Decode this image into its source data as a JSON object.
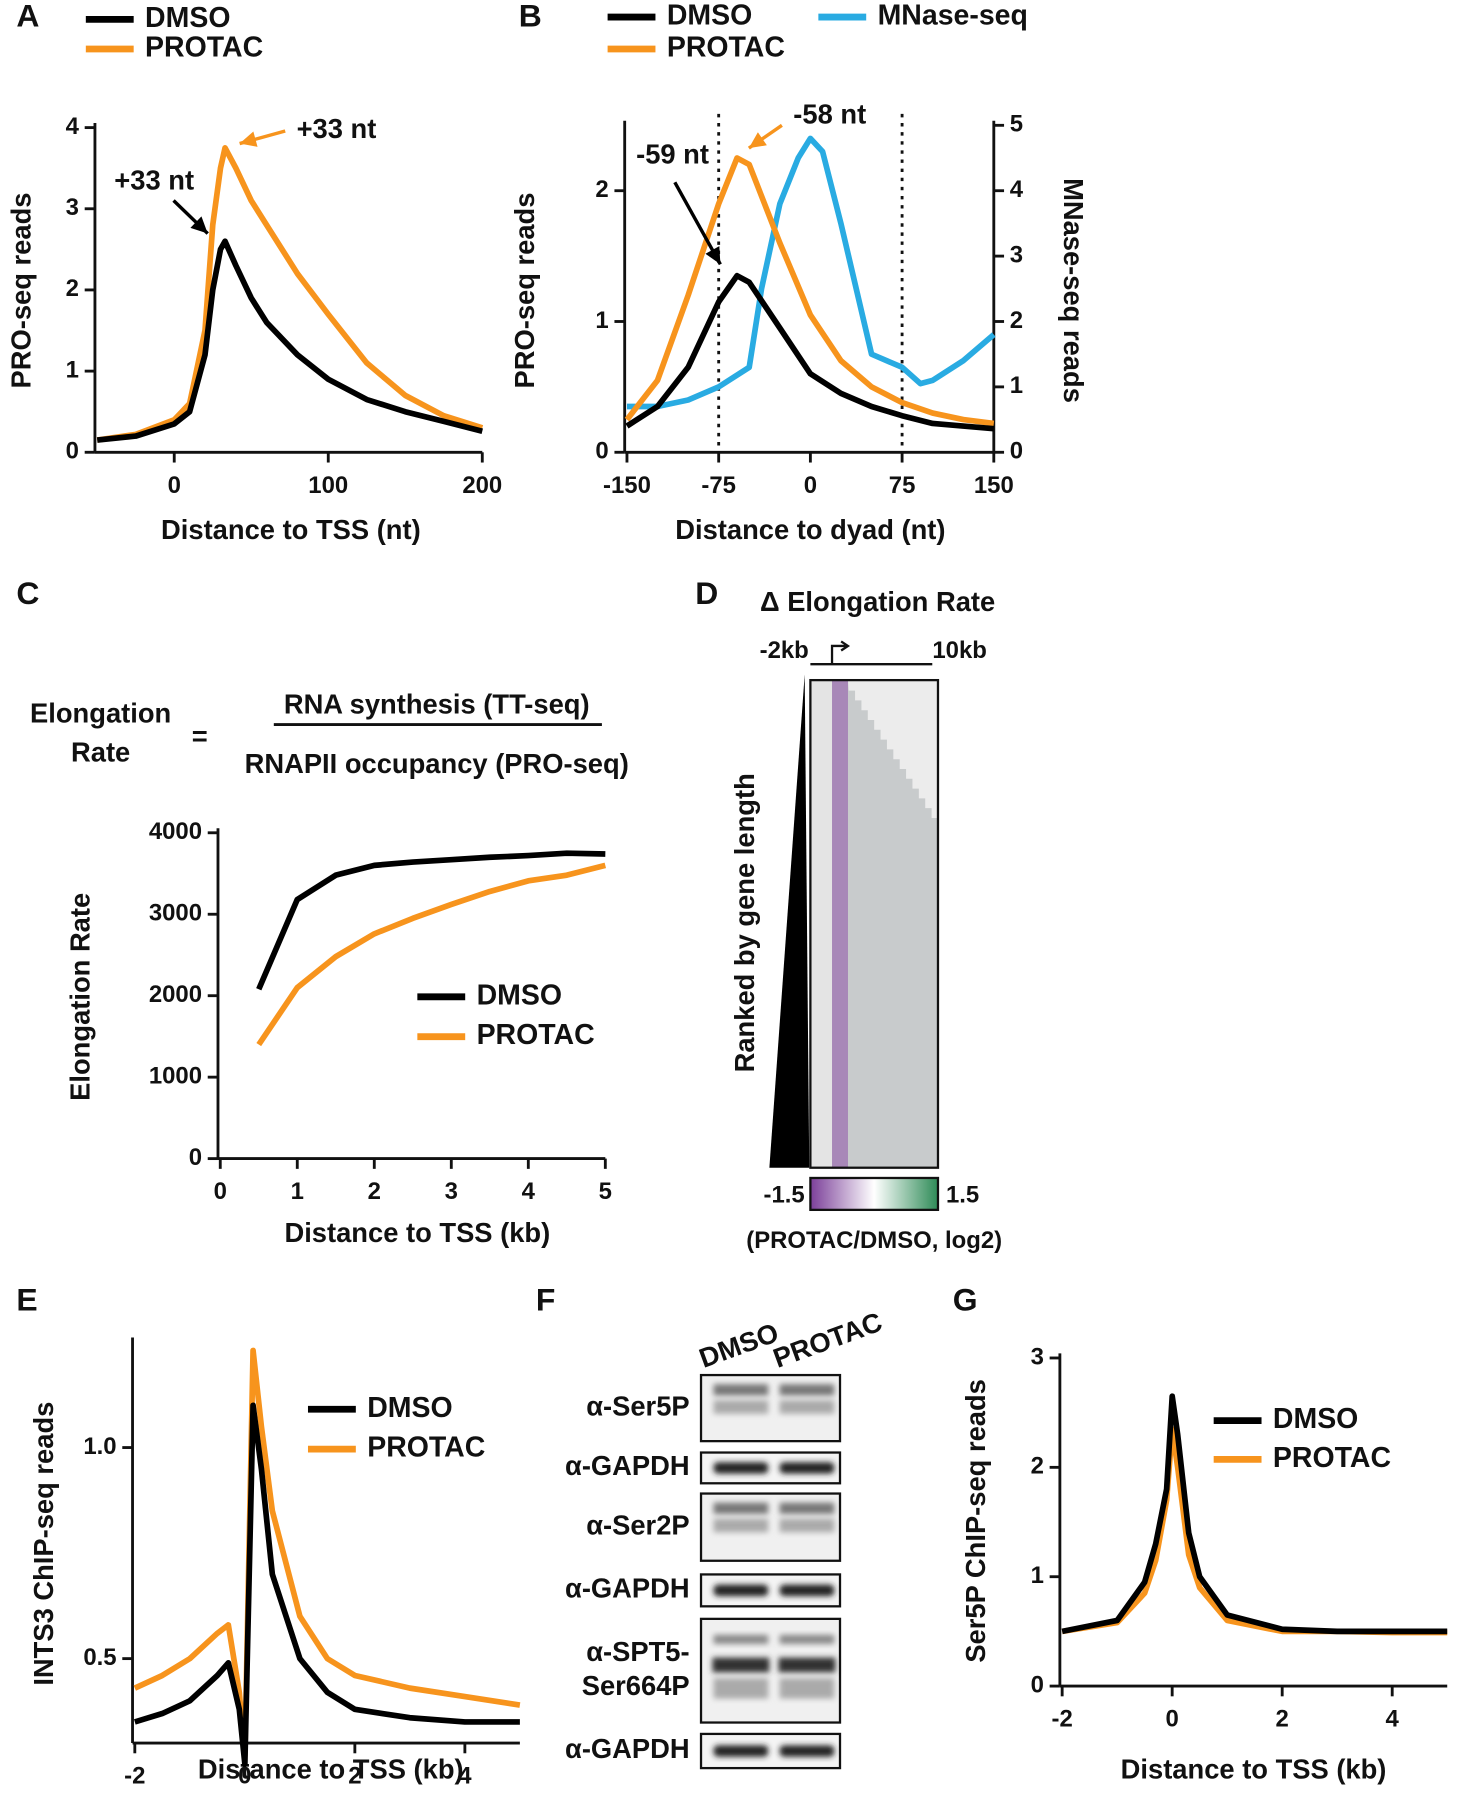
{
  "chart_data": [
    {
      "type": "line",
      "panel": "A",
      "ylabel": "PRO-seq reads",
      "xlabel": "Distance to TSS (nt)",
      "xlim": [
        -50,
        200
      ],
      "ylim": [
        0,
        4
      ],
      "xticks": [
        0,
        100,
        200
      ],
      "yticks": [
        0,
        1,
        2,
        3,
        4
      ],
      "series": [
        {
          "name": "DMSO",
          "color": "#000000",
          "x": [
            -50,
            -25,
            0,
            10,
            20,
            25,
            30,
            33,
            40,
            50,
            60,
            80,
            100,
            125,
            150,
            175,
            200
          ],
          "values": [
            0.15,
            0.2,
            0.35,
            0.5,
            1.2,
            2.0,
            2.5,
            2.6,
            2.3,
            1.9,
            1.6,
            1.2,
            0.9,
            0.65,
            0.5,
            0.38,
            0.26
          ]
        },
        {
          "name": "PROTAC",
          "color": "#f7941d",
          "x": [
            -50,
            -25,
            0,
            10,
            20,
            25,
            30,
            33,
            40,
            50,
            60,
            80,
            100,
            125,
            150,
            175,
            200
          ],
          "values": [
            0.15,
            0.22,
            0.4,
            0.6,
            1.5,
            2.8,
            3.5,
            3.75,
            3.5,
            3.1,
            2.8,
            2.2,
            1.7,
            1.1,
            0.7,
            0.45,
            0.3
          ]
        }
      ],
      "annotations": [
        {
          "text": "+33 nt",
          "color": "#000000"
        },
        {
          "text": "+33 nt",
          "color": "#f7941d"
        }
      ]
    },
    {
      "type": "line",
      "panel": "B",
      "ylabel": "PRO-seq reads",
      "y2label": "MNase-seq reads",
      "xlabel": "Distance to dyad (nt)",
      "xlim": [
        -150,
        150
      ],
      "ylim": [
        0,
        2.5
      ],
      "y2lim": [
        0,
        5
      ],
      "xticks": [
        -150,
        -75,
        0,
        75,
        150
      ],
      "yticks": [
        0,
        1,
        2
      ],
      "y2ticks": [
        0,
        1,
        2,
        3,
        4,
        5
      ],
      "vlines": [
        -75,
        75
      ],
      "series": [
        {
          "name": "DMSO",
          "color": "#000000",
          "x": [
            -150,
            -125,
            -100,
            -75,
            -60,
            -50,
            -25,
            0,
            25,
            50,
            75,
            100,
            125,
            150
          ],
          "values": [
            0.2,
            0.35,
            0.65,
            1.15,
            1.35,
            1.3,
            0.95,
            0.6,
            0.45,
            0.35,
            0.28,
            0.22,
            0.2,
            0.18
          ]
        },
        {
          "name": "PROTAC",
          "color": "#f7941d",
          "x": [
            -150,
            -125,
            -100,
            -75,
            -60,
            -50,
            -25,
            0,
            25,
            50,
            75,
            100,
            125,
            150
          ],
          "values": [
            0.25,
            0.55,
            1.2,
            1.9,
            2.25,
            2.2,
            1.6,
            1.05,
            0.7,
            0.5,
            0.38,
            0.3,
            0.25,
            0.22
          ]
        },
        {
          "name": "MNase-seq",
          "color": "#29abe2",
          "axis": "y2",
          "x": [
            -150,
            -125,
            -100,
            -75,
            -50,
            -40,
            -25,
            -10,
            0,
            10,
            25,
            50,
            75,
            90,
            100,
            125,
            150
          ],
          "values": [
            0.7,
            0.7,
            0.8,
            1.0,
            1.3,
            2.5,
            3.8,
            4.5,
            4.8,
            4.6,
            3.5,
            1.5,
            1.3,
            1.05,
            1.1,
            1.4,
            1.8
          ]
        }
      ],
      "annotations": [
        {
          "text": "-59 nt",
          "color": "#000000"
        },
        {
          "text": "-58 nt",
          "color": "#f7941d"
        }
      ]
    },
    {
      "type": "line",
      "panel": "C",
      "ylabel": "Elongation Rate",
      "xlabel": "Distance to TSS (kb)",
      "formula": {
        "lhs": [
          "Elongation",
          "Rate"
        ],
        "equals": "=",
        "numerator": "RNA synthesis (TT-seq)",
        "denominator": "RNAPII occupancy (PRO-seq)"
      },
      "xlim": [
        0,
        5
      ],
      "ylim": [
        0,
        4000
      ],
      "xticks": [
        0,
        1,
        2,
        3,
        4,
        5
      ],
      "yticks": [
        0,
        1000,
        2000,
        3000,
        4000
      ],
      "series": [
        {
          "name": "DMSO",
          "color": "#000000",
          "x": [
            0.5,
            1,
            1.5,
            2,
            2.5,
            3,
            3.5,
            4,
            4.5,
            5
          ],
          "values": [
            2080,
            3180,
            3480,
            3600,
            3640,
            3670,
            3700,
            3720,
            3750,
            3740
          ]
        },
        {
          "name": "PROTAC",
          "color": "#f7941d",
          "x": [
            0.5,
            1,
            1.5,
            2,
            2.5,
            3,
            3.5,
            4,
            4.5,
            5
          ],
          "values": [
            1400,
            2100,
            2480,
            2760,
            2950,
            3120,
            3280,
            3410,
            3480,
            3600
          ]
        }
      ]
    },
    {
      "type": "heatmap",
      "panel": "D",
      "title": "Δ Elongation Rate",
      "xlabels": [
        "-2kb",
        "10kb"
      ],
      "ylabel": "Ranked by gene length",
      "colorbar": {
        "min": -1.5,
        "max": 1.5,
        "colors": [
          "#7b3f99",
          "#ffffff",
          "#2e8b57"
        ],
        "label": "(PROTAC/DMSO, log2)"
      }
    },
    {
      "type": "line",
      "panel": "E",
      "ylabel": "INTS3 ChIP-seq reads",
      "xlabel": "Distance to TSS (kb)",
      "xlim": [
        -2,
        5
      ],
      "ylim": [
        0.3,
        1.25
      ],
      "xticks": [
        -2,
        0,
        2,
        4
      ],
      "yticks": [
        0.5,
        {
          "value": 1,
          "label": "1.0"
        }
      ],
      "series": [
        {
          "name": "DMSO",
          "color": "#000000",
          "x": [
            -2,
            -1.5,
            -1,
            -0.5,
            -0.3,
            -0.1,
            0,
            0.15,
            0.3,
            0.5,
            1,
            1.5,
            2,
            3,
            4,
            5
          ],
          "values": [
            0.35,
            0.37,
            0.4,
            0.46,
            0.49,
            0.38,
            0.25,
            1.1,
            0.95,
            0.7,
            0.5,
            0.42,
            0.38,
            0.36,
            0.35,
            0.35
          ]
        },
        {
          "name": "PROTAC",
          "color": "#f7941d",
          "x": [
            -2,
            -1.5,
            -1,
            -0.5,
            -0.3,
            -0.1,
            0,
            0.15,
            0.3,
            0.5,
            1,
            1.5,
            2,
            3,
            4,
            5
          ],
          "values": [
            0.43,
            0.46,
            0.5,
            0.56,
            0.58,
            0.42,
            0.27,
            1.23,
            1.05,
            0.85,
            0.6,
            0.5,
            0.46,
            0.43,
            0.41,
            0.39
          ]
        }
      ]
    },
    {
      "type": "blot",
      "panel": "F",
      "lanes": [
        "DMSO",
        "PROTAC"
      ],
      "rows": [
        [
          "α-Ser5P"
        ],
        [
          "α-GAPDH"
        ],
        [
          "α-Ser2P"
        ],
        [
          "α-GAPDH"
        ],
        [
          "α-SPT5-",
          "Ser664P"
        ],
        [
          "α-GAPDH"
        ]
      ]
    },
    {
      "type": "line",
      "panel": "G",
      "ylabel": "Ser5P ChIP-seq reads",
      "xlabel": "Distance to TSS (kb)",
      "xlim": [
        -2,
        5
      ],
      "ylim": [
        0,
        3
      ],
      "xticks": [
        -2,
        0,
        2,
        4
      ],
      "yticks": [
        0,
        1,
        2,
        3
      ],
      "series": [
        {
          "name": "DMSO",
          "color": "#000000",
          "x": [
            -2,
            -1,
            -0.5,
            -0.3,
            -0.1,
            0,
            0.1,
            0.3,
            0.5,
            1,
            2,
            3,
            4,
            5
          ],
          "values": [
            0.5,
            0.6,
            0.95,
            1.3,
            1.8,
            2.65,
            2.3,
            1.4,
            1.0,
            0.65,
            0.52,
            0.5,
            0.5,
            0.5
          ]
        },
        {
          "name": "PROTAC",
          "color": "#f7941d",
          "x": [
            -2,
            -1,
            -0.5,
            -0.3,
            -0.1,
            0,
            0.1,
            0.3,
            0.5,
            1,
            2,
            3,
            4,
            5
          ],
          "values": [
            0.5,
            0.58,
            0.85,
            1.15,
            1.7,
            2.35,
            2.0,
            1.2,
            0.9,
            0.6,
            0.5,
            0.5,
            0.49,
            0.49
          ]
        }
      ]
    }
  ]
}
